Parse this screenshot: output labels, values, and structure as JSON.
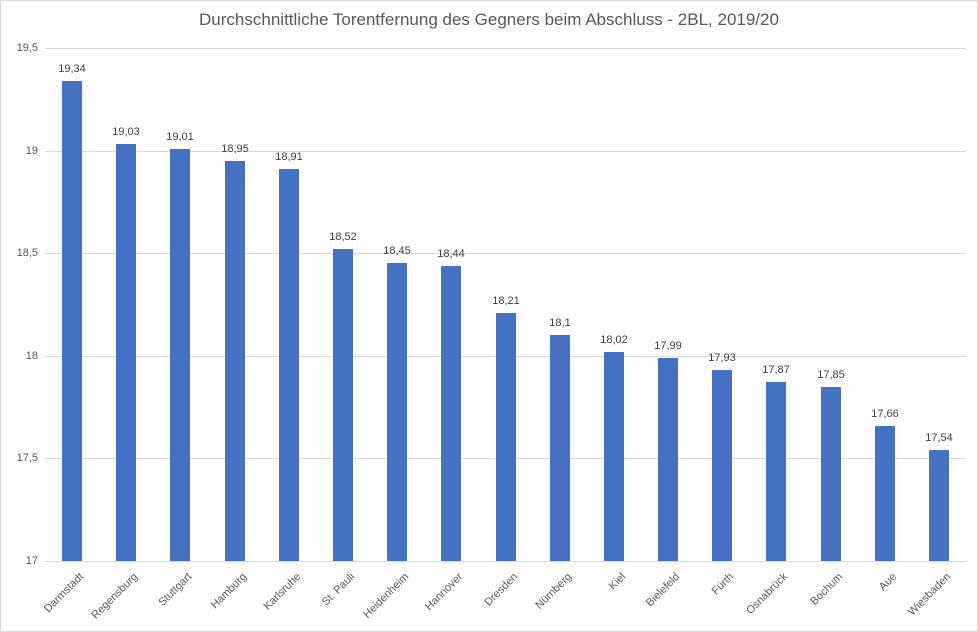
{
  "chart_data": {
    "type": "bar",
    "title": "Durchschnittliche Torentfernung des Gegners beim Abschluss - 2BL, 2019/20",
    "categories": [
      "Darmstadt",
      "Regensburg",
      "Stuttgart",
      "Hamburg",
      "Karlsruhe",
      "St. Pauli",
      "Heidenheim",
      "Hannover",
      "Dresden",
      "Nürnberg",
      "Kiel",
      "Bielefeld",
      "Fürth",
      "Osnabrück",
      "Bochum",
      "Aue",
      "Wiesbaden"
    ],
    "values": [
      19.34,
      19.03,
      19.01,
      18.95,
      18.91,
      18.52,
      18.45,
      18.44,
      18.21,
      18.1,
      18.02,
      17.99,
      17.93,
      17.87,
      17.85,
      17.66,
      17.54
    ],
    "value_labels": [
      "19,34",
      "19,03",
      "19,01",
      "18,95",
      "18,91",
      "18,52",
      "18,45",
      "18,44",
      "18,21",
      "18,1",
      "18,02",
      "17,99",
      "17,93",
      "17,87",
      "17,85",
      "17,66",
      "17,54"
    ],
    "xlabel": "",
    "ylabel": "",
    "ylim": [
      17,
      19.5
    ],
    "yticks": [
      19.5,
      19,
      18.5,
      18,
      17.5,
      17
    ],
    "ytick_labels": [
      "19,5",
      "19",
      "18,5",
      "18",
      "17,5",
      "17"
    ],
    "grid": "horizontal",
    "legend": "none",
    "decimal_separator": ",",
    "bar_color": "#4472C4",
    "gridline_color": "#d9d9d9",
    "title_color": "#595959"
  }
}
